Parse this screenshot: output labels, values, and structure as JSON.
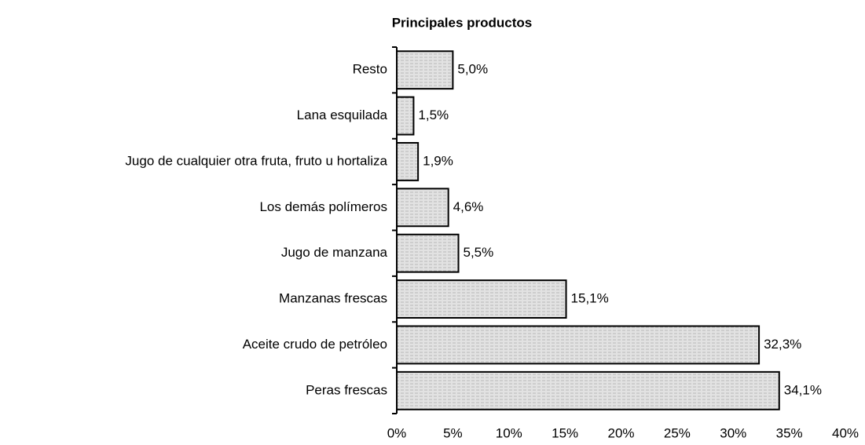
{
  "chart_data": {
    "type": "barh",
    "title": "Principales productos",
    "categories": [
      "Resto",
      "Lana esquilada",
      "Jugo de cualquier otra fruta, fruto u hortaliza",
      "Los demás polímeros",
      "Jugo de manzana",
      "Manzanas frescas",
      "Aceite crudo de petróleo",
      "Peras frescas"
    ],
    "values": [
      5.0,
      1.5,
      1.9,
      4.6,
      5.5,
      15.1,
      32.3,
      34.1
    ],
    "value_labels": [
      "5,0%",
      "1,5%",
      "1,9%",
      "4,6%",
      "5,5%",
      "15,1%",
      "32,3%",
      "34,1%"
    ],
    "color": "#dcdcdc",
    "xlim": [
      0,
      40
    ],
    "xticks": [
      {
        "value": 0,
        "label": "0%"
      },
      {
        "value": 5,
        "label": "5%"
      },
      {
        "value": 10,
        "label": "10%"
      },
      {
        "value": 15,
        "label": "15%"
      },
      {
        "value": 20,
        "label": "20%"
      },
      {
        "value": 25,
        "label": "25%"
      },
      {
        "value": 30,
        "label": "30%"
      },
      {
        "value": 35,
        "label": "35%"
      },
      {
        "value": 40,
        "label": "40%"
      }
    ],
    "grid": false
  }
}
